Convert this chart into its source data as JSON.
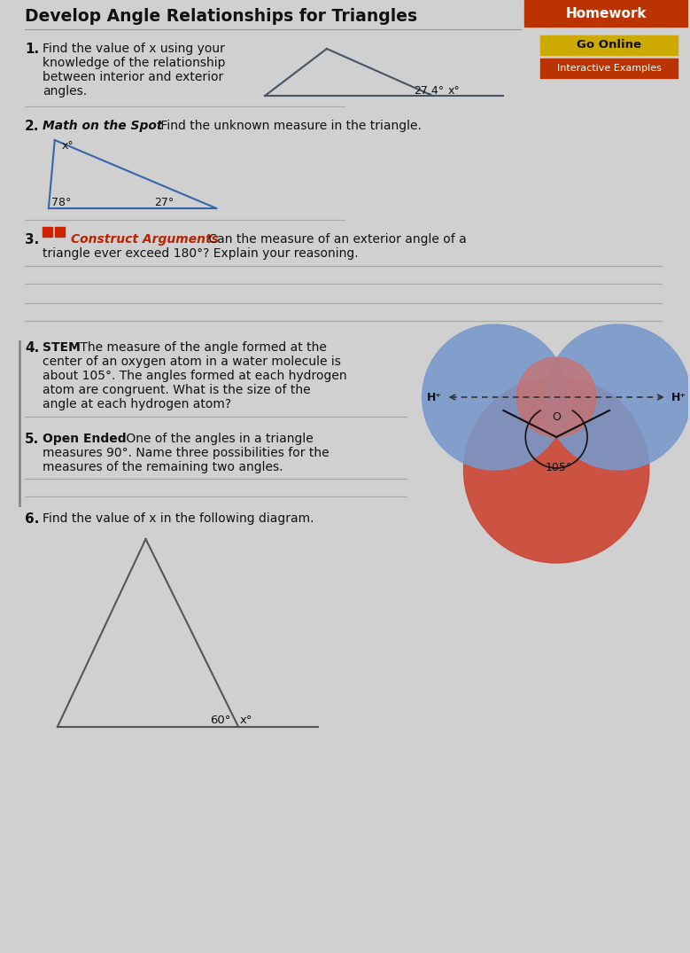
{
  "title": "Develop Angle Relationships for Triangles",
  "bg_color": "#d0d0d0",
  "homework_label": "Homework",
  "go_online_label": "Go Online",
  "interactive_label": "Interactive Examples",
  "q1_num": "1.",
  "q1_line1": "Find the value of x using your",
  "q1_line2": "knowledge of the relationship",
  "q1_line3": "between interior and exterior",
  "q1_line4": "angles.",
  "q1_angle1": "27.4°",
  "q1_angle2": "x°",
  "q2_num": "2.",
  "q2_bold": "Math on the Spot",
  "q2_rest": " Find the unknown measure in the triangle.",
  "q2_angle1": "78°",
  "q2_angle2": "27°",
  "q2_x_label": "x°",
  "q3_num": "3.",
  "q3_colored": "Construct Arguments",
  "q3_rest1": " Can the measure of an exterior angle of a",
  "q3_rest2": "triangle ever exceed 180°? Explain your reasoning.",
  "q4_num": "4.",
  "q4_bold": "STEM",
  "q4_line1": " The measure of the angle formed at the",
  "q4_line2": "center of an oxygen atom in a water molecule is",
  "q4_line3": "about 105°. The angles formed at each hydrogen",
  "q4_line4": "atom are congruent. What is the size of the",
  "q4_line5": "angle at each hydrogen atom?",
  "q5_num": "5.",
  "q5_bold": "Open Ended",
  "q5_line1": " One of the angles in a triangle",
  "q5_line2": "measures 90°. Name three possibilities for the",
  "q5_line3": "measures of the remaining two angles.",
  "q6_num": "6.",
  "q6_text": "Find the value of x in the following diagram.",
  "q6_angle": "60°",
  "q6_x": "x°",
  "answer_line_color": "#aaaaaa",
  "construct_color": "#bb2200",
  "go_online_bg": "#ccaa00",
  "interactive_bg": "#bb3300",
  "homework_bg": "#bb3300"
}
